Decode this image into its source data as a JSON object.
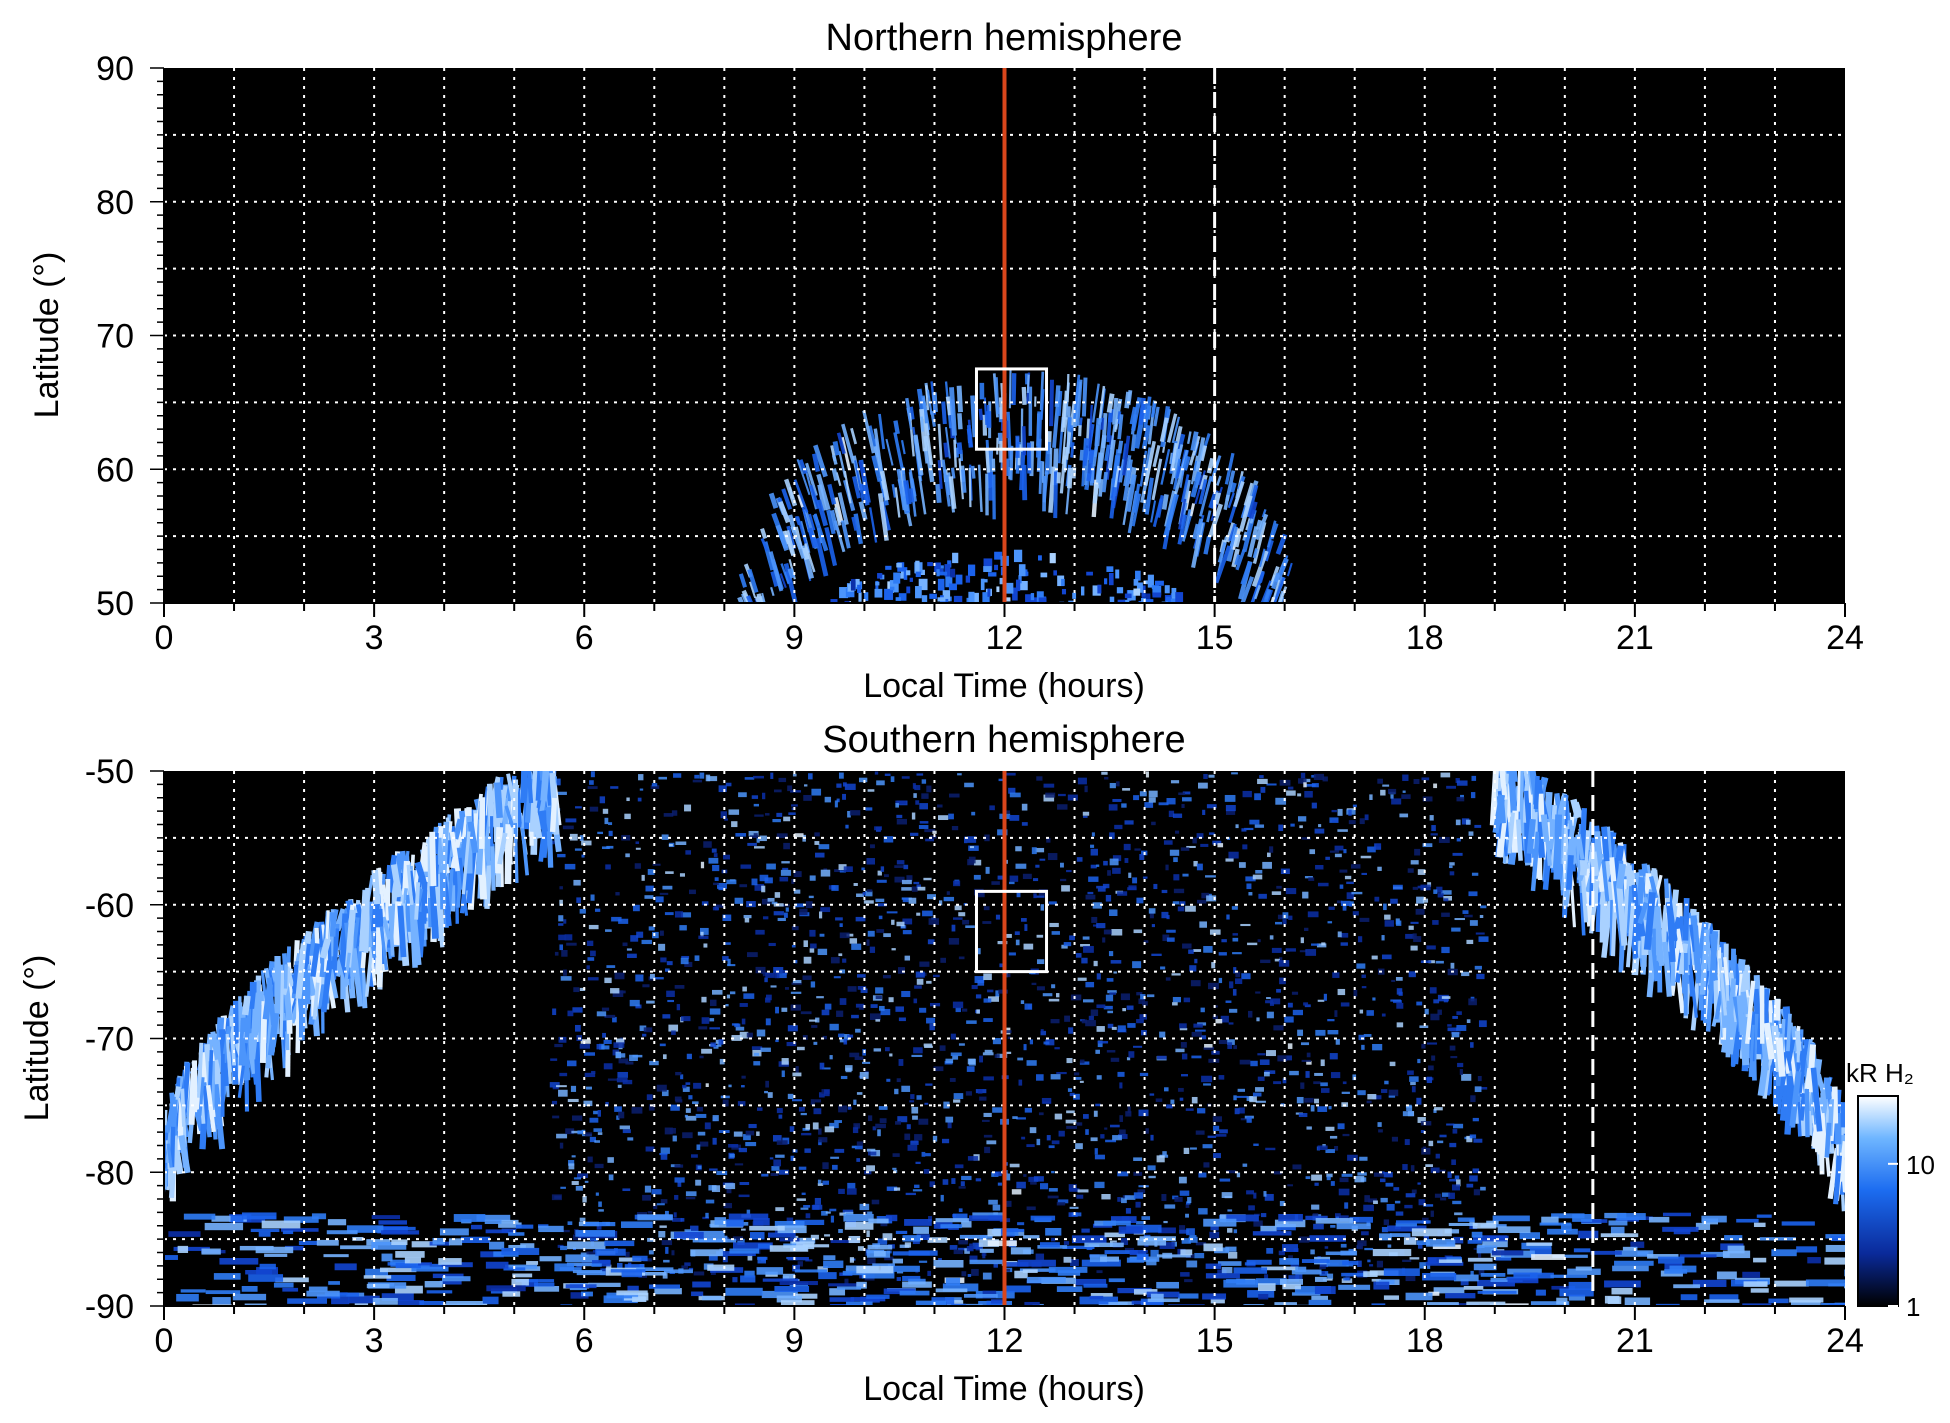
{
  "chart_data": [
    {
      "type": "heatmap",
      "title": "Northern hemisphere",
      "xlabel": "Local Time (hours)",
      "ylabel": "Latitude (°)",
      "xlim": [
        0,
        24
      ],
      "ylim": [
        50,
        90
      ],
      "xticks": [
        0,
        3,
        6,
        9,
        12,
        15,
        18,
        21,
        24
      ],
      "yticks": [
        50,
        60,
        70,
        80,
        90
      ],
      "grid": true,
      "noon_line_hours": 12,
      "noon_line_color": "#d9461b",
      "dashed_line_hours": 15,
      "box": {
        "x": [
          11.6,
          12.6
        ],
        "y": [
          61.5,
          67.5
        ]
      },
      "emission": {
        "main_oval": {
          "center_hours": 12.2,
          "half_width_hours": 4.0,
          "peak_lat": 67.5,
          "edge_lat": 50,
          "thickness_lat": 8
        },
        "inner_patch": {
          "center_hours": 12.0,
          "half_width_hours": 2.5,
          "top_lat": 54,
          "bottom_lat": 50
        }
      }
    },
    {
      "type": "heatmap",
      "title": "Southern hemisphere",
      "xlabel": "Local Time (hours)",
      "ylabel": "Latitude (°)",
      "xlim": [
        0,
        24
      ],
      "ylim": [
        -90,
        -50
      ],
      "xticks": [
        0,
        3,
        6,
        9,
        12,
        15,
        18,
        21,
        24
      ],
      "yticks": [
        -90,
        -80,
        -70,
        -60,
        -50
      ],
      "grid": true,
      "noon_line_hours": 12,
      "noon_line_color": "#d9461b",
      "dashed_line_hours": 20.4,
      "box": {
        "x": [
          11.6,
          12.6
        ],
        "y": [
          -65.0,
          -59.0
        ]
      },
      "emission": {
        "left_arc": {
          "from": [
            0.0,
            -78.0
          ],
          "to": [
            5.6,
            -50.0
          ]
        },
        "right_arc": {
          "from": [
            19.0,
            -50.0
          ],
          "to": [
            24.0,
            -78.0
          ]
        },
        "diffuse_region_hours": [
          5.5,
          18.8
        ],
        "bottom_band_lat": [
          -91,
          -83
        ]
      },
      "colorbar": {
        "label": "kR H₂",
        "scale": "log",
        "range": [
          1,
          30
        ],
        "ticks": [
          1,
          10
        ],
        "tick_labels": [
          "1",
          "10"
        ],
        "colors": [
          "#000000",
          "#0a2a9a",
          "#1c6cf0",
          "#6fb6ff",
          "#ffffff"
        ]
      }
    }
  ]
}
